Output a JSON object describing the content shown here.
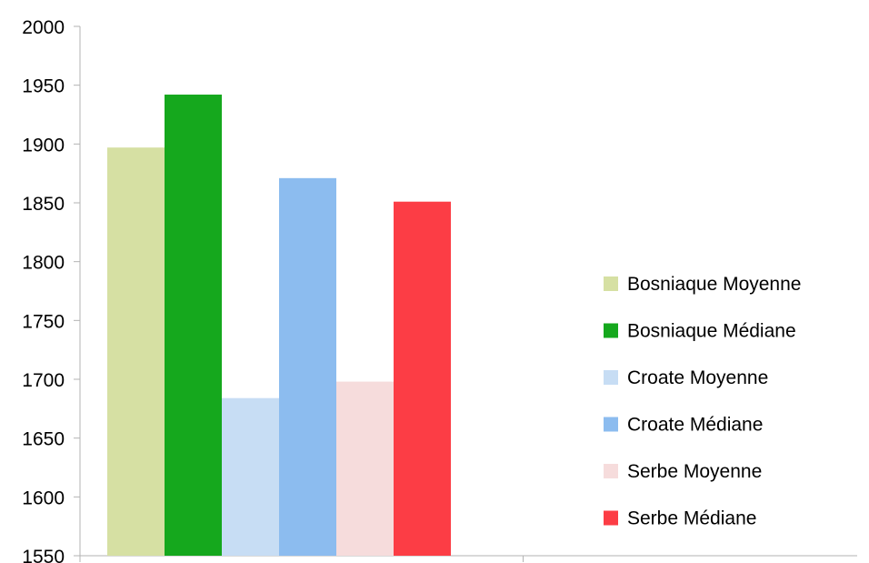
{
  "chart_data": {
    "type": "bar",
    "categories": [
      ""
    ],
    "series": [
      {
        "name": "Bosniaque Moyenne",
        "values": [
          1897
        ],
        "color": "#d6e0a3"
      },
      {
        "name": "Bosniaque Médiane",
        "values": [
          1942
        ],
        "color": "#15a81d"
      },
      {
        "name": "Croate Moyenne",
        "values": [
          1684
        ],
        "color": "#c7ddf4"
      },
      {
        "name": "Croate Médiane",
        "values": [
          1871
        ],
        "color": "#8cbcef"
      },
      {
        "name": "Serbe Moyenne",
        "values": [
          1698
        ],
        "color": "#f6dcdc"
      },
      {
        "name": "Serbe Médiane",
        "values": [
          1851
        ],
        "color": "#fc3d45"
      }
    ],
    "title": "",
    "xlabel": "",
    "ylabel": "",
    "ylim": [
      1550,
      2000
    ],
    "yticks": [
      "2000",
      "1950",
      "1900",
      "1850",
      "1800",
      "1750",
      "1700",
      "1650",
      "1600",
      "1550"
    ],
    "grid": false,
    "legend_position": "right"
  }
}
